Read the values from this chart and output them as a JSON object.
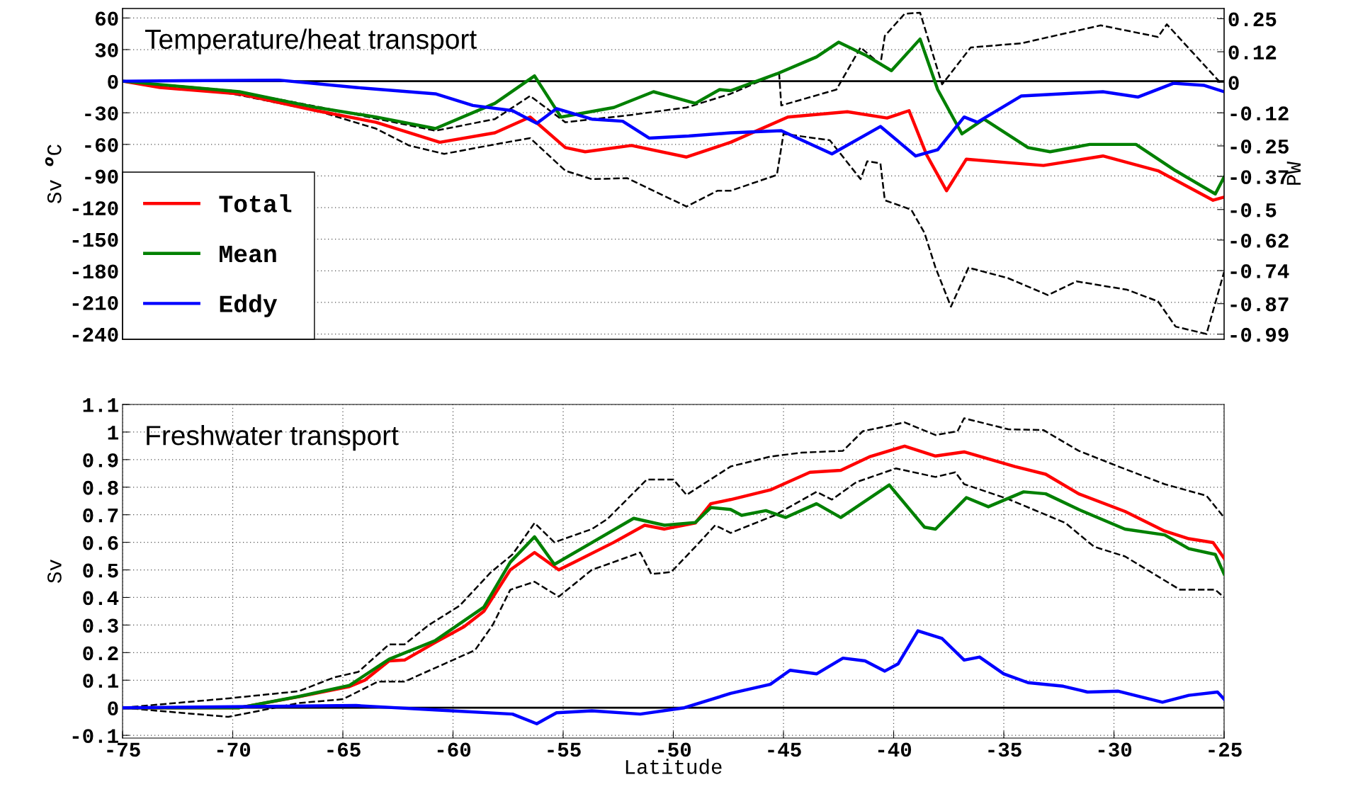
{
  "chart_data": [
    {
      "type": "line",
      "title": "Temperature/heat transport",
      "ylabel": "Sv $^{o}$C",
      "y2label": "PW",
      "xlim": [
        -75,
        -25
      ],
      "ylim": [
        -245,
        69
      ],
      "yticks": [
        60,
        30,
        0,
        -30,
        -60,
        -90,
        -120,
        -150,
        -180,
        -210,
        -240
      ],
      "y2lim": [
        -1.01,
        0.29
      ],
      "y2ticks": [
        0.25,
        0.12,
        0,
        -0.12,
        -0.25,
        -0.37,
        -0.5,
        -0.62,
        -0.74,
        -0.87,
        -0.99
      ],
      "tick_labels": "y",
      "grid": "y",
      "legend": "bottom left",
      "ref_lines": [
        {
          "axis": "y",
          "value": 0,
          "color": "#000000",
          "line_style": "solid"
        }
      ],
      "series": [
        {
          "name": "Total",
          "color": "#ff0000",
          "line_style": "solid",
          "x": [
            -75,
            -73.3,
            -69.7,
            -66.2,
            -63.5,
            -60.6,
            -58.1,
            -56.5,
            -54.9,
            -54.0,
            -51.9,
            -49.4,
            -47.4,
            -44.8,
            -42.1,
            -40.3,
            -39.3,
            -38.5,
            -37.6,
            -36.7,
            -35,
            -33.2,
            -30.5,
            -28,
            -25.5,
            -25
          ],
          "values": [
            0,
            -6,
            -12,
            -28,
            -39,
            -58,
            -49,
            -34,
            -63,
            -67,
            -61,
            -72,
            -58,
            -34,
            -29,
            -35,
            -28,
            -70,
            -104,
            -74,
            -77,
            -80,
            -71,
            -85,
            -113,
            -110
          ]
        },
        {
          "name": "Mean",
          "color": "#008000",
          "line_style": "solid",
          "x": [
            -75,
            -69.7,
            -66.2,
            -63.5,
            -60.8,
            -58.1,
            -56.3,
            -55.1,
            -52.7,
            -50.9,
            -49.0,
            -47.9,
            -47.4,
            -45.3,
            -43.5,
            -42.5,
            -41.3,
            -40.1,
            -38.8,
            -38.0,
            -36.9,
            -35.9,
            -33.9,
            -32.9,
            -31.1,
            -29.0,
            -27.2,
            -25.4,
            -25
          ],
          "values": [
            0,
            -10,
            -25,
            -34,
            -45,
            -21,
            5,
            -34,
            -25,
            -10,
            -21,
            -8,
            -9,
            7,
            23,
            37,
            25,
            10,
            40,
            -8,
            -50,
            -36,
            -63,
            -67,
            -60,
            -60,
            -85,
            -107,
            -91
          ]
        },
        {
          "name": "Eddy",
          "color": "#0000ff",
          "line_style": "solid",
          "x": [
            -75,
            -67.9,
            -64.4,
            -60.8,
            -59.1,
            -57.3,
            -56.2,
            -55.3,
            -53.7,
            -52.3,
            -51.1,
            -49.3,
            -47.4,
            -45.1,
            -42.8,
            -40.6,
            -39.0,
            -38.0,
            -36.8,
            -36.2,
            -34.2,
            -30.5,
            -28.9,
            -27.3,
            -25.9,
            -25
          ],
          "values": [
            0,
            1,
            -6,
            -12,
            -23,
            -28,
            -40,
            -26,
            -36,
            -38,
            -54,
            -52,
            -49,
            -47,
            -69,
            -43,
            -71,
            -65,
            -34,
            -39,
            -14,
            -10,
            -15,
            -2,
            -4,
            -10
          ]
        },
        {
          "color": "#000000",
          "line_style": "dashed",
          "x": [
            -75,
            -70,
            -66.2,
            -60.8,
            -58.1,
            -56.5,
            -54.9,
            -51.9,
            -49.4,
            -47.4,
            -45.2,
            -45.1,
            -42.6,
            -41.5,
            -40.6,
            -40.4,
            -39.5,
            -38.8,
            -37.8,
            -36.5,
            -34.2,
            -30.6,
            -28.0,
            -27.6,
            -25.1
          ],
          "values": [
            0,
            -9,
            -24,
            -47,
            -36,
            -14,
            -39,
            -32,
            -25,
            -12,
            8,
            -23,
            -8,
            32,
            16,
            43,
            64,
            65,
            -3,
            32,
            36,
            53,
            42,
            54,
            -3
          ]
        },
        {
          "color": "#000000",
          "line_style": "dashed",
          "x": [
            -75,
            -70,
            -66.2,
            -63.5,
            -62,
            -60.4,
            -58.1,
            -56.5,
            -54.9,
            -53.7,
            -52.1,
            -49.4,
            -48.0,
            -47.4,
            -45.3,
            -45.0,
            -42.9,
            -41.5,
            -41.2,
            -40.6,
            -40.4,
            -39.2,
            -38.6,
            -38.1,
            -37.4,
            -36.6,
            -34.8,
            -33.0,
            -31.7,
            -29.4,
            -28.0,
            -27.2,
            -25.8,
            -25.0
          ],
          "values": [
            0,
            -12,
            -28,
            -45,
            -61,
            -69,
            -60,
            -54,
            -85,
            -93,
            -92,
            -119,
            -104,
            -104,
            -89,
            -50,
            -56,
            -93,
            -76,
            -78,
            -113,
            -122,
            -144,
            -177,
            -214,
            -177,
            -187,
            -203,
            -190,
            -198,
            -209,
            -233,
            -240,
            -181
          ]
        }
      ]
    },
    {
      "type": "line",
      "title": "Freshwater transport",
      "ylabel": "Sv",
      "xlabel": "Latitude",
      "xlim": [
        -75,
        -25
      ],
      "xticks": [
        -75,
        -70,
        -65,
        -60,
        -55,
        -50,
        -45,
        -40,
        -35,
        -30,
        -25
      ],
      "ylim": [
        -0.11,
        1.1
      ],
      "yticks": [
        -0.1,
        0,
        0.1,
        0.2,
        0.3,
        0.4,
        0.5,
        0.6,
        0.7,
        0.8,
        0.9,
        1,
        1.1
      ],
      "grid": true,
      "ref_lines": [
        {
          "axis": "y",
          "value": 0,
          "color": "#000000",
          "line_style": "solid"
        }
      ],
      "series": [
        {
          "color": "#ff0000",
          "line_style": "solid",
          "x": [
            -75,
            -69.7,
            -67,
            -64.7,
            -64,
            -62.9,
            -62.2,
            -60.8,
            -59.5,
            -58.6,
            -57.4,
            -56.3,
            -55.2,
            -54.5,
            -52.7,
            -51.3,
            -50.4,
            -49,
            -48.3,
            -47.4,
            -45.6,
            -43.8,
            -42.4,
            -41.1,
            -39.5,
            -38.1,
            -36.8,
            -34.5,
            -33.1,
            -31.6,
            -29.5,
            -27.7,
            -26.6,
            -25.5,
            -25
          ],
          "values": [
            0,
            0,
            0.04,
            0.077,
            0.1,
            0.17,
            0.173,
            0.237,
            0.294,
            0.35,
            0.5,
            0.563,
            0.5,
            0.528,
            0.6,
            0.662,
            0.648,
            0.67,
            0.74,
            0.755,
            0.79,
            0.854,
            0.861,
            0.91,
            0.949,
            0.913,
            0.928,
            0.875,
            0.847,
            0.776,
            0.712,
            0.641,
            0.613,
            0.599,
            0.542
          ]
        },
        {
          "color": "#008000",
          "line_style": "solid",
          "x": [
            -75,
            -69.7,
            -67,
            -64.7,
            -62.9,
            -60.8,
            -58.6,
            -57.4,
            -56.3,
            -55.4,
            -51.8,
            -50.4,
            -49,
            -48.3,
            -47.4,
            -46.9,
            -45.8,
            -44.9,
            -43.5,
            -42.4,
            -40.2,
            -38.6,
            -38.1,
            -36.7,
            -35.7,
            -34.1,
            -33.1,
            -31.6,
            -29.5,
            -27.7,
            -26.6,
            -25.4,
            -25
          ],
          "values": [
            0,
            0,
            0.041,
            0.081,
            0.176,
            0.244,
            0.365,
            0.528,
            0.62,
            0.52,
            0.687,
            0.662,
            0.672,
            0.726,
            0.719,
            0.698,
            0.715,
            0.69,
            0.74,
            0.69,
            0.808,
            0.655,
            0.648,
            0.762,
            0.729,
            0.783,
            0.776,
            0.719,
            0.648,
            0.627,
            0.577,
            0.556,
            0.485
          ]
        },
        {
          "color": "#0000ff",
          "line_style": "solid",
          "x": [
            -75,
            -64.4,
            -60.8,
            -57.3,
            -56.2,
            -55.3,
            -53.7,
            -51.5,
            -49.5,
            -47.4,
            -45.6,
            -44.7,
            -43.5,
            -42.3,
            -41.3,
            -40.4,
            -39.8,
            -38.9,
            -37.8,
            -36.8,
            -36.1,
            -35,
            -33.9,
            -32.3,
            -31.2,
            -29.8,
            -27.8,
            -26.6,
            -25.3,
            -25
          ],
          "values": [
            0,
            0.008,
            -0.008,
            -0.023,
            -0.058,
            -0.018,
            -0.011,
            -0.023,
            0,
            0.052,
            0.085,
            0.136,
            0.123,
            0.18,
            0.17,
            0.133,
            0.159,
            0.279,
            0.251,
            0.173,
            0.184,
            0.123,
            0.091,
            0.078,
            0.057,
            0.06,
            0.02,
            0.045,
            0.057,
            0.031
          ]
        },
        {
          "color": "#000000",
          "line_style": "dashed",
          "x": [
            -75,
            -70.2,
            -67,
            -65.4,
            -64.3,
            -62.9,
            -62.2,
            -61.1,
            -59.7,
            -58.3,
            -57.3,
            -56.3,
            -55.4,
            -53.7,
            -53,
            -51.2,
            -50,
            -49.4,
            -47.4,
            -45.6,
            -44.2,
            -42.3,
            -41.4,
            -39.5,
            -38.1,
            -37.1,
            -36.8,
            -34.8,
            -33.2,
            -31.6,
            -29.8,
            -27.7,
            -25.8,
            -25
          ],
          "values": [
            0,
            0.034,
            0.06,
            0.11,
            0.13,
            0.23,
            0.23,
            0.3,
            0.37,
            0.49,
            0.556,
            0.67,
            0.6,
            0.648,
            0.684,
            0.828,
            0.828,
            0.772,
            0.875,
            0.911,
            0.925,
            0.932,
            1.003,
            1.035,
            0.989,
            1.003,
            1.05,
            1.01,
            1.007,
            0.932,
            0.875,
            0.811,
            0.769,
            0.69
          ]
        },
        {
          "color": "#000000",
          "line_style": "dashed",
          "x": [
            -75,
            -70.2,
            -67,
            -65,
            -63.4,
            -62.2,
            -60.4,
            -59,
            -58.2,
            -57.4,
            -56.3,
            -55.2,
            -53.7,
            -51.5,
            -51,
            -50.1,
            -49,
            -48.1,
            -47.4,
            -45.4,
            -43.5,
            -42.8,
            -41.7,
            -39.9,
            -38.1,
            -37.2,
            -36.8,
            -34.8,
            -32.2,
            -30.9,
            -29.5,
            -27,
            -25.4,
            -25
          ],
          "values": [
            0,
            -0.033,
            0.017,
            0.031,
            0.095,
            0.095,
            0.159,
            0.209,
            0.3,
            0.428,
            0.457,
            0.403,
            0.5,
            0.563,
            0.485,
            0.492,
            0.584,
            0.662,
            0.634,
            0.698,
            0.783,
            0.755,
            0.818,
            0.868,
            0.837,
            0.854,
            0.811,
            0.757,
            0.67,
            0.584,
            0.549,
            0.428,
            0.428,
            0.4
          ]
        }
      ]
    }
  ]
}
